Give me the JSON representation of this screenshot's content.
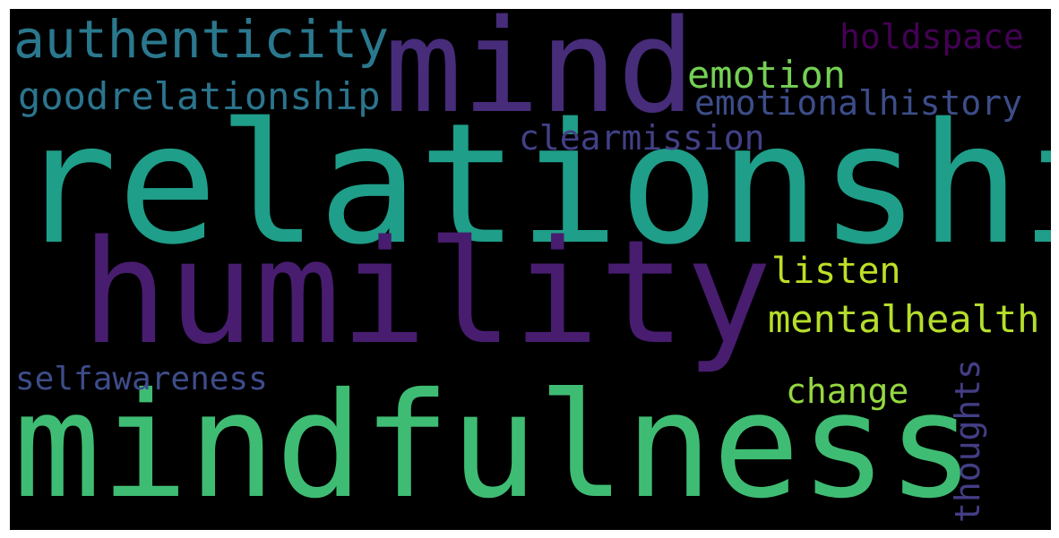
{
  "wordcloud": {
    "words": [
      {
        "text": "relationship",
        "color": "#1f9e89"
      },
      {
        "text": "humility",
        "color": "#481d6f"
      },
      {
        "text": "mindfulness",
        "color": "#3fbc73"
      },
      {
        "text": "mind",
        "color": "#472c7a"
      },
      {
        "text": "authenticity",
        "color": "#2a788e"
      },
      {
        "text": "goodrelationship",
        "color": "#2b758e"
      },
      {
        "text": "emotion",
        "color": "#75d054"
      },
      {
        "text": "holdspace",
        "color": "#440154"
      },
      {
        "text": "emotionalhistory",
        "color": "#3d4d8a"
      },
      {
        "text": "clearmission",
        "color": "#424086"
      },
      {
        "text": "listen",
        "color": "#bddf26"
      },
      {
        "text": "mentalhealth",
        "color": "#b5de2b"
      },
      {
        "text": "change",
        "color": "#95d840"
      },
      {
        "text": "selfawareness",
        "color": "#3e4c8a"
      },
      {
        "text": "thoughts",
        "color": "#433e85"
      }
    ]
  }
}
